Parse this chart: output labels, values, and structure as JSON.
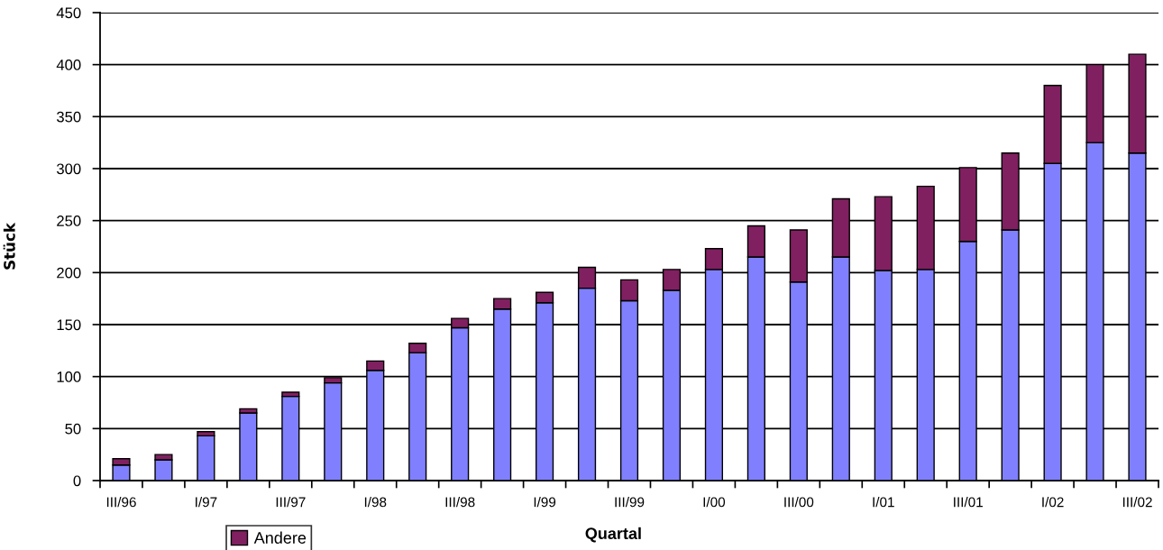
{
  "chart_data": {
    "type": "bar",
    "stacked": true,
    "xlabel": "Quartal",
    "ylabel": "Stück",
    "categories": [
      "III/96",
      null,
      "I/97",
      null,
      "III/97",
      null,
      "I/98",
      null,
      "III/98",
      null,
      "I/99",
      null,
      "III/99",
      null,
      "I/00",
      null,
      "III/00",
      null,
      "I/01",
      null,
      "III/01",
      null,
      "I/02",
      null,
      "III/02"
    ],
    "series": [
      {
        "color": "#8080ff",
        "values": [
          15,
          20,
          43,
          65,
          81,
          94,
          106,
          123,
          147,
          165,
          171,
          185,
          173,
          183,
          203,
          215,
          191,
          215,
          202,
          203,
          230,
          241,
          305,
          325,
          315
        ]
      },
      {
        "name": "Andere",
        "color": "#802060",
        "values": [
          6,
          5,
          4,
          4,
          4,
          5,
          9,
          9,
          9,
          10,
          10,
          20,
          20,
          20,
          20,
          30,
          50,
          56,
          71,
          80,
          71,
          74,
          75,
          75,
          95
        ]
      }
    ],
    "ylim": [
      0,
      450
    ],
    "yticks": [
      0,
      50,
      100,
      150,
      200,
      250,
      300,
      350,
      400,
      450
    ],
    "grid": "y",
    "legend": "bottom left"
  }
}
